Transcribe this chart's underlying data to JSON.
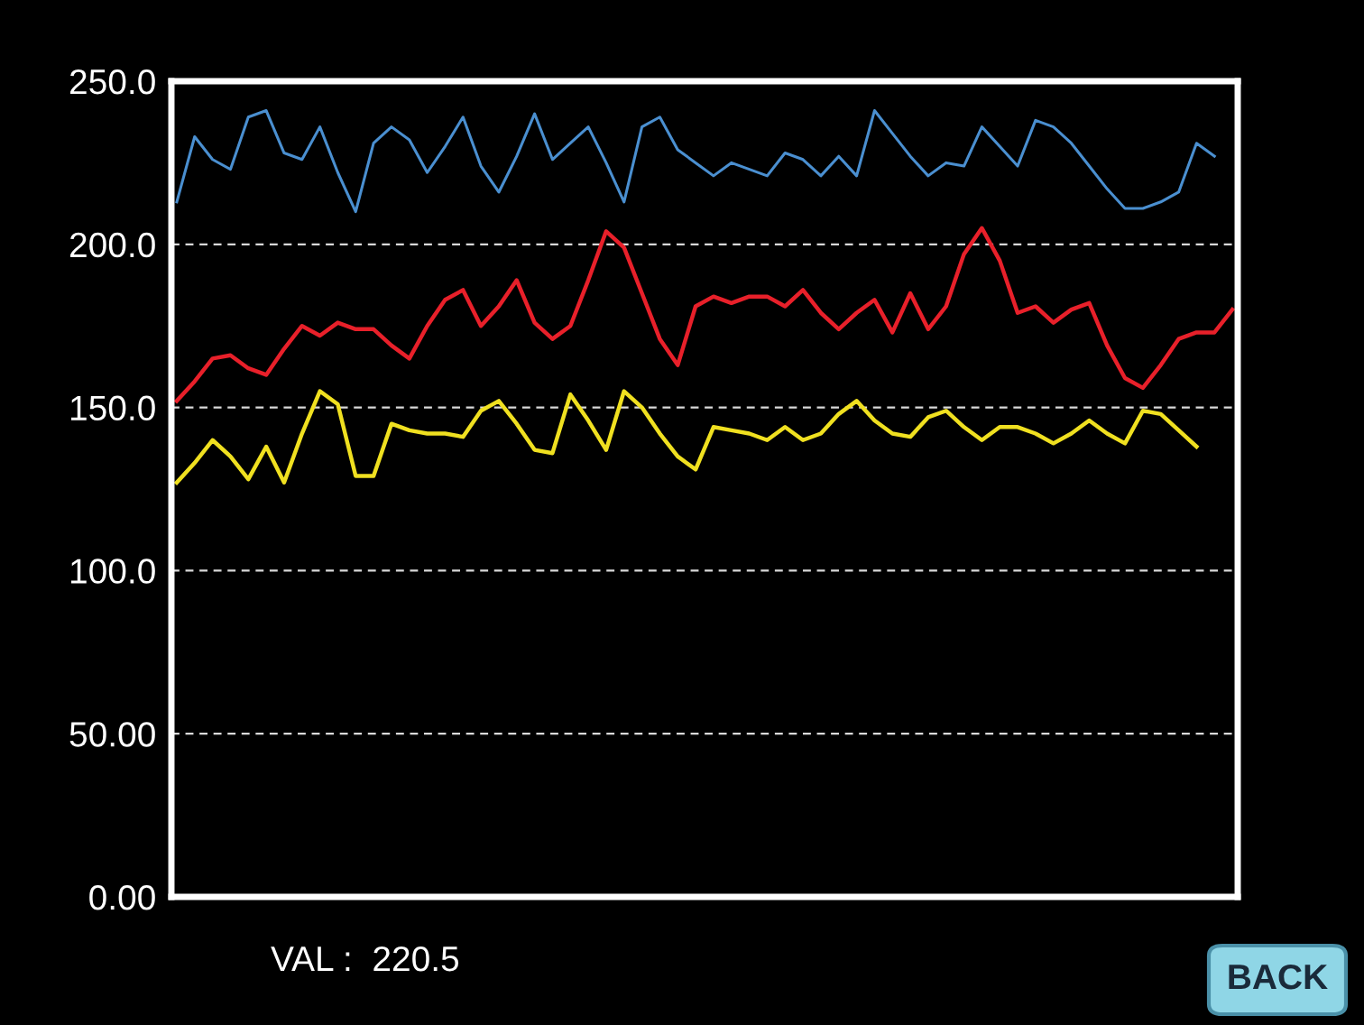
{
  "chart_data": {
    "type": "line",
    "categories": [
      null,
      null,
      null,
      null,
      null,
      null,
      null,
      null,
      null,
      null,
      null,
      null,
      null,
      null,
      null,
      null,
      null,
      null,
      null,
      null,
      null,
      null,
      null,
      null,
      null,
      null,
      null,
      null,
      null,
      null,
      null,
      null,
      null,
      null,
      null,
      null,
      null,
      null,
      null,
      null,
      null,
      null,
      null,
      null,
      null,
      null,
      null,
      null,
      null,
      null,
      null,
      null,
      null,
      null,
      null,
      null,
      null,
      null,
      null,
      null
    ],
    "series": [
      {
        "color": "#4a8fd0",
        "values": [
          213,
          233,
          226,
          223,
          239,
          241,
          228,
          226,
          236,
          222,
          210,
          231,
          236,
          232,
          222,
          230,
          239,
          224,
          216,
          227,
          240,
          226,
          231,
          236,
          225,
          213,
          236,
          239,
          229,
          225,
          221,
          225,
          223,
          221,
          228,
          226,
          221,
          227,
          221,
          241,
          234,
          227,
          221,
          225,
          224,
          236,
          230,
          224,
          238,
          236,
          231,
          224,
          217,
          211,
          211,
          213,
          216,
          231,
          227,
          null
        ]
      },
      {
        "color": "#e8202a",
        "values": [
          152,
          158,
          165,
          166,
          162,
          160,
          168,
          175,
          172,
          176,
          174,
          174,
          169,
          165,
          175,
          183,
          186,
          175,
          181,
          189,
          176,
          171,
          175,
          189,
          204,
          199,
          185,
          171,
          163,
          181,
          184,
          182,
          184,
          184,
          181,
          186,
          179,
          174,
          179,
          183,
          173,
          185,
          174,
          181,
          197,
          205,
          195,
          179,
          181,
          176,
          180,
          182,
          169,
          159,
          156,
          163,
          171,
          173,
          173,
          180
        ]
      },
      {
        "color": "#f0e020",
        "values": [
          127,
          133,
          140,
          135,
          128,
          138,
          127,
          142,
          155,
          151,
          129,
          129,
          145,
          143,
          142,
          142,
          141,
          149,
          152,
          145,
          137,
          136,
          154,
          146,
          137,
          155,
          150,
          142,
          135,
          131,
          144,
          143,
          142,
          140,
          144,
          140,
          142,
          148,
          152,
          146,
          142,
          141,
          147,
          149,
          144,
          140,
          144,
          144,
          142,
          139,
          142,
          146,
          142,
          139,
          149,
          148,
          143,
          138,
          null,
          null
        ]
      }
    ],
    "ylim": [
      0,
      250
    ],
    "yticks": [
      {
        "value": 0,
        "label": "0.00"
      },
      {
        "value": 50,
        "label": "50.00"
      },
      {
        "value": 100,
        "label": "100.0"
      },
      {
        "value": 150,
        "label": "150.0"
      },
      {
        "value": 200,
        "label": "200.0"
      },
      {
        "value": 250,
        "label": "250.0"
      }
    ],
    "grid": "y",
    "annotations": [
      "VAL :  220.5",
      "BACK"
    ]
  }
}
